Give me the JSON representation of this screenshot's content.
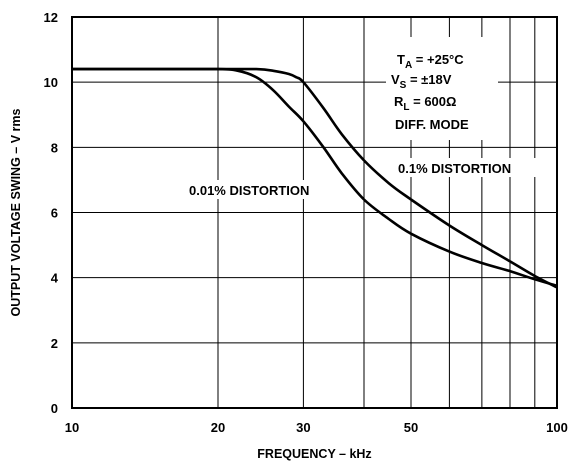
{
  "chart_data": {
    "type": "line",
    "title": "",
    "xlabel": "FREQUENCY – kHz",
    "ylabel": "OUTPUT VOLTAGE SWING – V rms",
    "xscale": "log",
    "xlim": [
      10,
      100
    ],
    "ylim": [
      0,
      12
    ],
    "x_ticks": [
      10,
      20,
      30,
      50,
      100
    ],
    "x_tick_labels": [
      "10",
      "20",
      "30",
      "50",
      "100"
    ],
    "x_gridlines": [
      20,
      30,
      40,
      50,
      60,
      70,
      80,
      90
    ],
    "y_ticks": [
      0,
      2,
      4,
      6,
      8,
      10,
      12
    ],
    "y_tick_labels": [
      "0",
      "2",
      "4",
      "6",
      "8",
      "10",
      "12"
    ],
    "grid": true,
    "legend": "none",
    "conditions": {
      "ta_main": "T",
      "ta_sub": "A",
      "ta_rest": " = +25°C",
      "vs_main": "V",
      "vs_sub": "S",
      "vs_rest": " = ±18V",
      "rl_main": "R",
      "rl_sub": "L",
      "rl_rest": " = 600Ω",
      "mode": "DIFF. MODE"
    },
    "series": [
      {
        "name": "0.1% DISTORTION",
        "x": [
          10,
          15,
          20,
          24,
          26,
          28,
          29,
          30,
          33,
          36,
          40,
          45,
          50,
          60,
          70,
          80,
          90,
          100
        ],
        "y": [
          10.4,
          10.4,
          10.4,
          10.4,
          10.35,
          10.25,
          10.15,
          10.0,
          9.2,
          8.4,
          7.6,
          6.9,
          6.4,
          5.6,
          5.0,
          4.5,
          4.05,
          3.7
        ]
      },
      {
        "name": "0.01% DISTORTION",
        "x": [
          10,
          15,
          20,
          22,
          24,
          26,
          28,
          30,
          33,
          36,
          40,
          45,
          50,
          60,
          70,
          80,
          90,
          100
        ],
        "y": [
          10.4,
          10.4,
          10.4,
          10.35,
          10.15,
          9.75,
          9.25,
          8.8,
          8.0,
          7.2,
          6.4,
          5.8,
          5.35,
          4.8,
          4.45,
          4.2,
          3.95,
          3.75
        ]
      }
    ]
  }
}
